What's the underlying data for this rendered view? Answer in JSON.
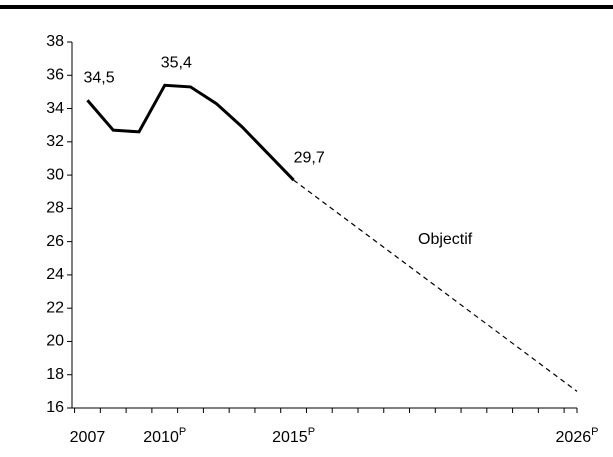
{
  "chart_data": {
    "type": "line",
    "series": [
      {
        "x": [
          2007,
          2008,
          2009,
          2010,
          2011,
          2012,
          2013,
          2014,
          2015
        ],
        "values": [
          34.5,
          32.7,
          32.6,
          35.4,
          35.3,
          34.3,
          32.9,
          31.3,
          29.7
        ],
        "value_labels": [
          "34,5",
          null,
          null,
          "35,4",
          null,
          null,
          null,
          null,
          "29,7"
        ],
        "color": "#000000",
        "dash": false
      },
      {
        "name": "Objectif",
        "x": [
          2015,
          2026
        ],
        "values": [
          29.7,
          17.0
        ],
        "color": "#000000",
        "dash": true
      }
    ],
    "xlim": [
      2006.4,
      2026.0
    ],
    "xticks": [
      {
        "value": 2007,
        "label": "2007"
      },
      {
        "value": 2010,
        "label": "2010",
        "suffix": "P"
      },
      {
        "value": 2015,
        "label": "2015",
        "suffix": "P"
      },
      {
        "value": 2026,
        "label": "2026",
        "suffix": "P"
      }
    ],
    "ylim": [
      16,
      38
    ],
    "yticks": [
      16,
      18,
      20,
      22,
      24,
      26,
      28,
      30,
      32,
      34,
      36,
      38
    ]
  }
}
